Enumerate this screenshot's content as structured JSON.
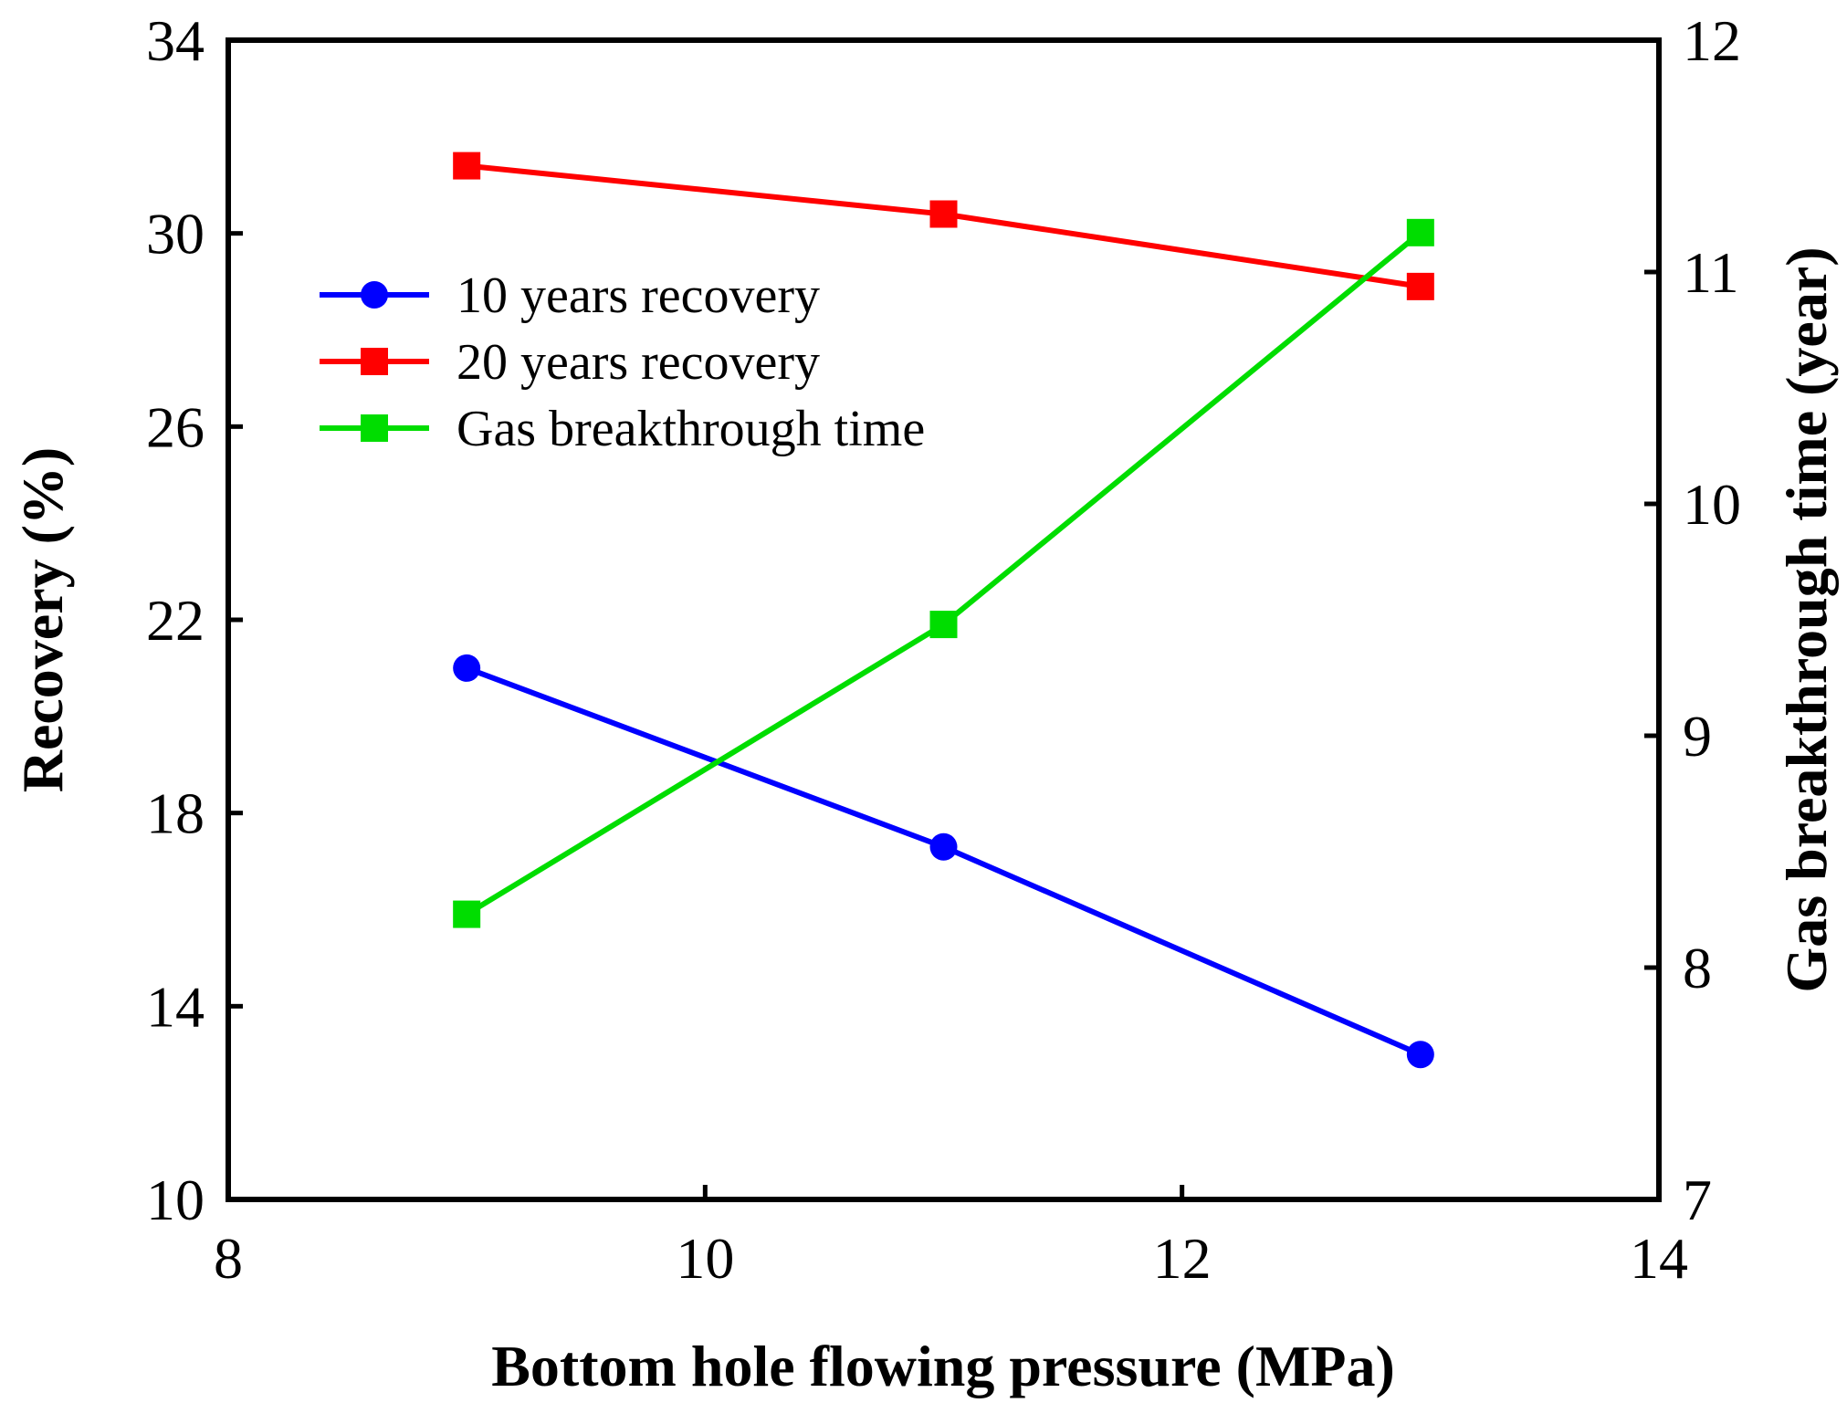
{
  "chart_data": {
    "type": "line",
    "xlabel": "Bottom hole flowing pressure (MPa)",
    "ylabel_left": "Recovery (%)",
    "ylabel_right": "Gas breakthrough time (year)",
    "xlim": [
      8,
      14
    ],
    "ylim_left": [
      10,
      34
    ],
    "ylim_right": [
      7,
      12
    ],
    "xticks": [
      "8",
      "10",
      "12",
      "14"
    ],
    "yticks_left": [
      "10",
      "14",
      "18",
      "22",
      "26",
      "30",
      "34"
    ],
    "yticks_right": [
      "7",
      "8",
      "9",
      "10",
      "11",
      "12"
    ],
    "legend_position": "upper-left",
    "grid": false,
    "series": [
      {
        "name": "10 years recovery",
        "axis": "left",
        "color": "#0000ff",
        "marker": "circle",
        "x": [
          9,
          11,
          13
        ],
        "y": [
          21.0,
          17.3,
          13.0
        ]
      },
      {
        "name": "20 years recovery",
        "axis": "left",
        "color": "#ff0000",
        "marker": "square",
        "x": [
          9,
          11,
          13
        ],
        "y": [
          31.4,
          30.4,
          28.9
        ]
      },
      {
        "name": "Gas breakthrough time",
        "axis": "right",
        "color": "#00dd00",
        "marker": "square",
        "x": [
          9,
          11,
          13
        ],
        "y": [
          8.23,
          9.48,
          11.17
        ]
      }
    ]
  }
}
